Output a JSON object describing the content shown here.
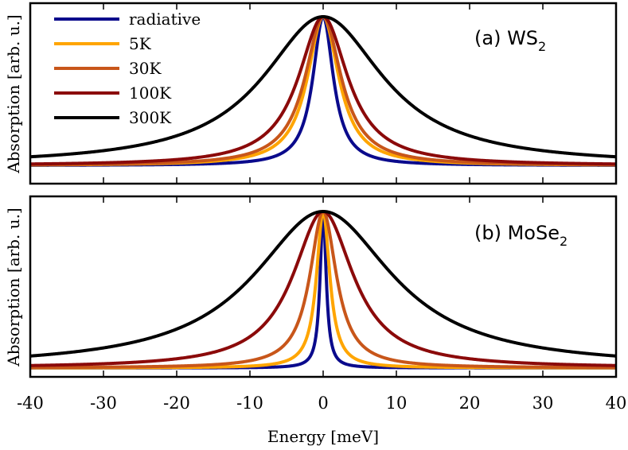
{
  "chart_data": {
    "type": "line",
    "xlabel": "Energy [meV]",
    "ylabel": "Absorption [arb. u.]",
    "xlim": [
      -40,
      40
    ],
    "xticks": [
      "-40",
      "-30",
      "-20",
      "-10",
      "0",
      "10",
      "20",
      "30",
      "40"
    ],
    "grid": false,
    "legend": {
      "placement": "top-left",
      "panel": 0
    },
    "series_styles": [
      {
        "name": "radiative",
        "color": "#0a0a8c"
      },
      {
        "name": "5K",
        "color": "#ffa500"
      },
      {
        "name": "30K",
        "color": "#c8561a"
      },
      {
        "name": "100K",
        "color": "#8b0a0a"
      },
      {
        "name": "300K",
        "color": "#000000"
      }
    ],
    "panels": [
      {
        "label_prefix": "(a) WS",
        "label_sub": "2",
        "baseline": 0.1,
        "series": [
          {
            "name": "radiative",
            "hwhm": 1.7
          },
          {
            "name": "5K",
            "hwhm": 2.6
          },
          {
            "name": "30K",
            "hwhm": 3.0
          },
          {
            "name": "100K",
            "hwhm": 4.1
          },
          {
            "name": "300K",
            "hwhm": 10.0
          }
        ]
      },
      {
        "label_prefix": "(b) MoSe",
        "label_sub": "2",
        "baseline": 0.04,
        "series": [
          {
            "name": "radiative",
            "hwhm": 0.5
          },
          {
            "name": "5K",
            "hwhm": 1.1
          },
          {
            "name": "30K",
            "hwhm": 2.2
          },
          {
            "name": "100K",
            "hwhm": 5.0
          },
          {
            "name": "300K",
            "hwhm": 11.5
          }
        ]
      }
    ]
  }
}
